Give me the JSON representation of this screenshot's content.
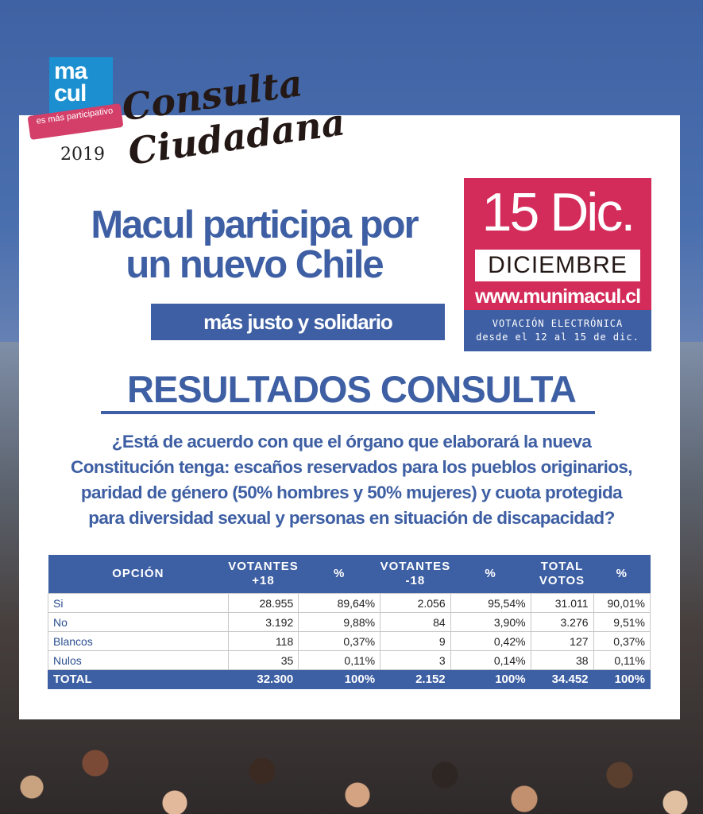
{
  "logo": {
    "line1": "ma",
    "line2": "cul",
    "tagline": "es más participativo"
  },
  "consulta": {
    "year": "2019",
    "line1": "Consulta",
    "line2": "Ciudadana"
  },
  "headline": {
    "line1": "Macul participa por",
    "line2": "un nuevo Chile",
    "subtitle": "más justo y solidario"
  },
  "date_box": {
    "big": "15 Dic.",
    "month": "DICIEMBRE",
    "url": "www.munimacul.cl",
    "note_line1": "VOTACIÓN ELECTRÓNICA",
    "note_line2": "desde el 12 al 15 de dic."
  },
  "results_title": "RESULTADOS CONSULTA",
  "question": {
    "line1": "¿Está de acuerdo con que el órgano que elaborará la nueva",
    "line2": "Constitución tenga: escaños reservados para los pueblos originarios,",
    "line3": "paridad de género (50% hombres y 50% mujeres) y cuota protegida",
    "line4": "para diversidad sexual y personas en situación de discapacidad?"
  },
  "table": {
    "headers": {
      "opcion": "OPCIÓN",
      "v18_l1": "VOTANTES",
      "v18_l2": "+18",
      "p1": "%",
      "vm18_l1": "VOTANTES",
      "vm18_l2": "-18",
      "p2": "%",
      "tot_l1": "TOTAL",
      "tot_l2": "VOTOS",
      "p3": "%"
    },
    "rows": [
      {
        "opcion": "Si",
        "v18": "28.955",
        "p1": "89,64%",
        "vm18": "2.056",
        "p2": "95,54%",
        "total": "31.011",
        "p3": "90,01%"
      },
      {
        "opcion": "No",
        "v18": "3.192",
        "p1": "9,88%",
        "vm18": "84",
        "p2": "3,90%",
        "total": "3.276",
        "p3": "9,51%"
      },
      {
        "opcion": "Blancos",
        "v18": "118",
        "p1": "0,37%",
        "vm18": "9",
        "p2": "0,42%",
        "total": "127",
        "p3": "0,37%"
      },
      {
        "opcion": "Nulos",
        "v18": "35",
        "p1": "0,11%",
        "vm18": "3",
        "p2": "0,14%",
        "total": "38",
        "p3": "0,11%"
      }
    ],
    "total": {
      "opcion": "TOTAL",
      "v18": "32.300",
      "p1": "100%",
      "vm18": "2.152",
      "p2": "100%",
      "total": "34.452",
      "p3": "100%"
    }
  }
}
